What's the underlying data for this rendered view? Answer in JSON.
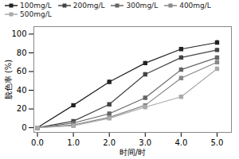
{
  "chart_data": {
    "type": "line",
    "xlabel": "时间/时",
    "ylabel": "脱色率 (%)",
    "x": [
      0,
      1,
      2,
      3,
      4,
      5
    ],
    "series": [
      {
        "name": "100mg/L",
        "color": "#222222",
        "values": [
          0,
          24,
          49,
          69,
          84,
          91
        ],
        "yerr": [
          0,
          1.5,
          2.0,
          2.0,
          2.0,
          2.5
        ]
      },
      {
        "name": "200mg/L",
        "color": "#444444",
        "values": [
          0,
          7,
          25,
          57,
          75,
          83
        ],
        "yerr": [
          0,
          1.0,
          1.5,
          2.0,
          2.0,
          2.0
        ]
      },
      {
        "name": "300mg/L",
        "color": "#666666",
        "values": [
          0,
          5,
          15,
          32,
          62,
          75
        ],
        "yerr": [
          0,
          1.0,
          1.5,
          2.0,
          2.5,
          2.0
        ]
      },
      {
        "name": "400mg/L",
        "color": "#888888",
        "values": [
          0,
          3,
          11,
          24,
          53,
          70
        ],
        "yerr": [
          0,
          0.8,
          1.2,
          1.5,
          2.0,
          2.0
        ]
      },
      {
        "name": "500mg/L",
        "color": "#aaaaaa",
        "values": [
          0,
          2,
          10,
          22,
          33,
          63
        ],
        "yerr": [
          0,
          0.8,
          1.0,
          1.5,
          1.5,
          2.0
        ]
      }
    ],
    "xlim": [
      -0.1,
      5.4
    ],
    "ylim": [
      -5,
      108
    ],
    "xticks": [
      0,
      1,
      2,
      3,
      4,
      5
    ],
    "yticks": [
      0,
      20,
      40,
      60,
      80,
      100
    ],
    "marker": "square",
    "legend": "upper left",
    "grid": false
  }
}
